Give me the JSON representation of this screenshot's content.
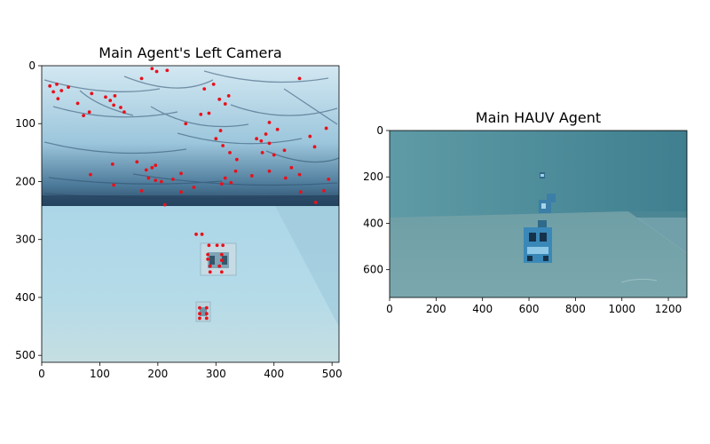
{
  "chart_data": [
    {
      "type": "image",
      "title": "Main Agent's Left Camera",
      "xlim": [
        0,
        512
      ],
      "ylim": [
        512,
        0
      ],
      "xticks": [
        0,
        100,
        200,
        300,
        400,
        500
      ],
      "yticks": [
        0,
        100,
        200,
        300,
        400,
        500
      ],
      "xtick_labels": [
        "0",
        "100",
        "200",
        "300",
        "400",
        "500"
      ],
      "ytick_labels": [
        "0",
        "100",
        "200",
        "300",
        "400",
        "500"
      ],
      "horizon_y": 240,
      "feature_color": "#e8111b",
      "feature_points": [
        [
          14,
          35
        ],
        [
          20,
          45
        ],
        [
          26,
          32
        ],
        [
          34,
          43
        ],
        [
          28,
          57
        ],
        [
          46,
          37
        ],
        [
          62,
          65
        ],
        [
          72,
          86
        ],
        [
          82,
          80
        ],
        [
          86,
          48
        ],
        [
          110,
          54
        ],
        [
          118,
          60
        ],
        [
          126,
          52
        ],
        [
          124,
          68
        ],
        [
          136,
          72
        ],
        [
          142,
          80
        ],
        [
          190,
          5
        ],
        [
          198,
          10
        ],
        [
          216,
          8
        ],
        [
          172,
          22
        ],
        [
          280,
          40
        ],
        [
          296,
          32
        ],
        [
          306,
          58
        ],
        [
          322,
          52
        ],
        [
          274,
          84
        ],
        [
          288,
          82
        ],
        [
          248,
          100
        ],
        [
          316,
          66
        ],
        [
          392,
          98
        ],
        [
          386,
          118
        ],
        [
          406,
          110
        ],
        [
          444,
          22
        ],
        [
          378,
          130
        ],
        [
          370,
          126
        ],
        [
          392,
          134
        ],
        [
          418,
          146
        ],
        [
          380,
          150
        ],
        [
          400,
          154
        ],
        [
          430,
          176
        ],
        [
          462,
          122
        ],
        [
          470,
          140
        ],
        [
          490,
          108
        ],
        [
          300,
          126
        ],
        [
          308,
          112
        ],
        [
          312,
          138
        ],
        [
          324,
          150
        ],
        [
          336,
          162
        ],
        [
          334,
          182
        ],
        [
          316,
          194
        ],
        [
          310,
          204
        ],
        [
          326,
          202
        ],
        [
          362,
          190
        ],
        [
          392,
          182
        ],
        [
          420,
          194
        ],
        [
          444,
          188
        ],
        [
          446,
          218
        ],
        [
          472,
          236
        ],
        [
          486,
          216
        ],
        [
          494,
          196
        ],
        [
          84,
          188
        ],
        [
          122,
          170
        ],
        [
          164,
          166
        ],
        [
          180,
          180
        ],
        [
          190,
          176
        ],
        [
          196,
          172
        ],
        [
          184,
          194
        ],
        [
          196,
          198
        ],
        [
          206,
          200
        ],
        [
          226,
          196
        ],
        [
          240,
          186
        ],
        [
          240,
          218
        ],
        [
          262,
          210
        ],
        [
          172,
          216
        ],
        [
          124,
          206
        ],
        [
          212,
          240
        ],
        [
          266,
          291
        ],
        [
          276,
          291
        ],
        [
          288,
          310
        ],
        [
          302,
          310
        ],
        [
          312,
          310
        ],
        [
          286,
          326
        ],
        [
          286,
          334
        ],
        [
          290,
          346
        ],
        [
          290,
          356
        ],
        [
          310,
          326
        ],
        [
          310,
          336
        ],
        [
          306,
          346
        ],
        [
          310,
          356
        ],
        [
          272,
          418
        ],
        [
          284,
          418
        ],
        [
          272,
          428
        ],
        [
          272,
          436
        ],
        [
          284,
          428
        ],
        [
          284,
          436
        ]
      ]
    },
    {
      "type": "image",
      "title": "Main HAUV Agent",
      "xlim": [
        0,
        1280
      ],
      "ylim": [
        720,
        0
      ],
      "xticks": [
        0,
        200,
        400,
        600,
        800,
        1000,
        1200
      ],
      "yticks": [
        0,
        200,
        400,
        600
      ],
      "xtick_labels": [
        "0",
        "200",
        "400",
        "600",
        "800",
        "1000",
        "1200"
      ],
      "ytick_labels": [
        "0",
        "200",
        "400",
        "600"
      ]
    }
  ]
}
